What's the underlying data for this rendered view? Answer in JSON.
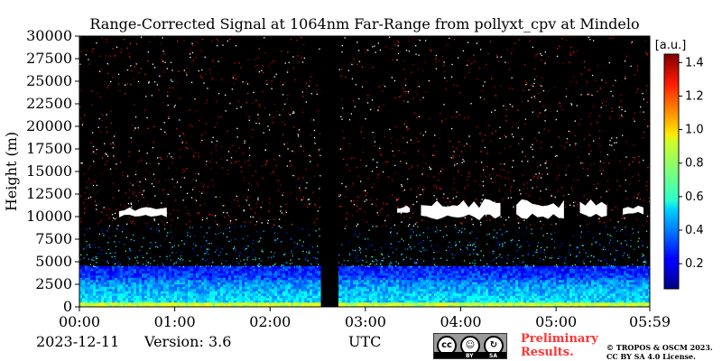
{
  "chart_data": {
    "type": "heatmap",
    "title": "Range-Corrected Signal at 1064nm Far-Range from pollyxt_cpv at Mindelo",
    "ylabel": "Height (m)",
    "xlabel": "UTC",
    "xlim": [
      "00:00",
      "05:59"
    ],
    "ylim": [
      0,
      30000
    ],
    "x_ticks": [
      "00:00",
      "01:00",
      "02:00",
      "03:00",
      "04:00",
      "05:00",
      "05:59"
    ],
    "y_ticks": [
      0,
      2500,
      5000,
      7500,
      10000,
      12500,
      15000,
      17500,
      20000,
      22500,
      25000,
      27500,
      30000
    ],
    "colorbar": {
      "unit": "[a.u.]",
      "ticks": [
        0.2,
        0.4,
        0.6,
        0.8,
        1.0,
        1.2,
        1.4
      ],
      "range": [
        0.05,
        1.45
      ],
      "colormap": "jet"
    },
    "data_gap_utc": [
      "02:32",
      "02:43"
    ],
    "cloud_layers": [
      {
        "start_utc": "00:25",
        "end_utc": "00:55",
        "base_m": 9800,
        "top_m": 11200,
        "signal": ">1.45"
      },
      {
        "start_utc": "03:20",
        "end_utc": "03:28",
        "base_m": 10400,
        "top_m": 11300,
        "signal": ">1.45"
      },
      {
        "start_utc": "03:35",
        "end_utc": "04:25",
        "base_m": 9600,
        "top_m": 12000,
        "signal": ">1.45"
      },
      {
        "start_utc": "04:35",
        "end_utc": "05:05",
        "base_m": 9600,
        "top_m": 12000,
        "signal": ">1.45"
      },
      {
        "start_utc": "05:15",
        "end_utc": "05:32",
        "base_m": 9900,
        "top_m": 12000,
        "signal": ">1.45"
      },
      {
        "start_utc": "05:42",
        "end_utc": "05:55",
        "base_m": 10200,
        "top_m": 11300,
        "signal": ">1.45"
      }
    ],
    "boundary_layer_top_m": 4500,
    "grid": false
  },
  "footer": {
    "date": "2023-12-11",
    "version": "Version: 3.6",
    "preliminary_line1": "Preliminary",
    "preliminary_line2": "Results.",
    "copyright_line1": "© TROPOS & OSCM 2023.",
    "copyright_line2": "CC BY SA 4.0 License.",
    "license_badge": {
      "icons": [
        "cc-icon",
        "by-icon",
        "sa-icon"
      ],
      "labels": [
        "BY",
        "SA"
      ]
    }
  },
  "colors": {
    "background": "#000000",
    "saturated_cloud": "#ffffff",
    "title_text": "#000000",
    "preliminary": "#ff3333"
  }
}
